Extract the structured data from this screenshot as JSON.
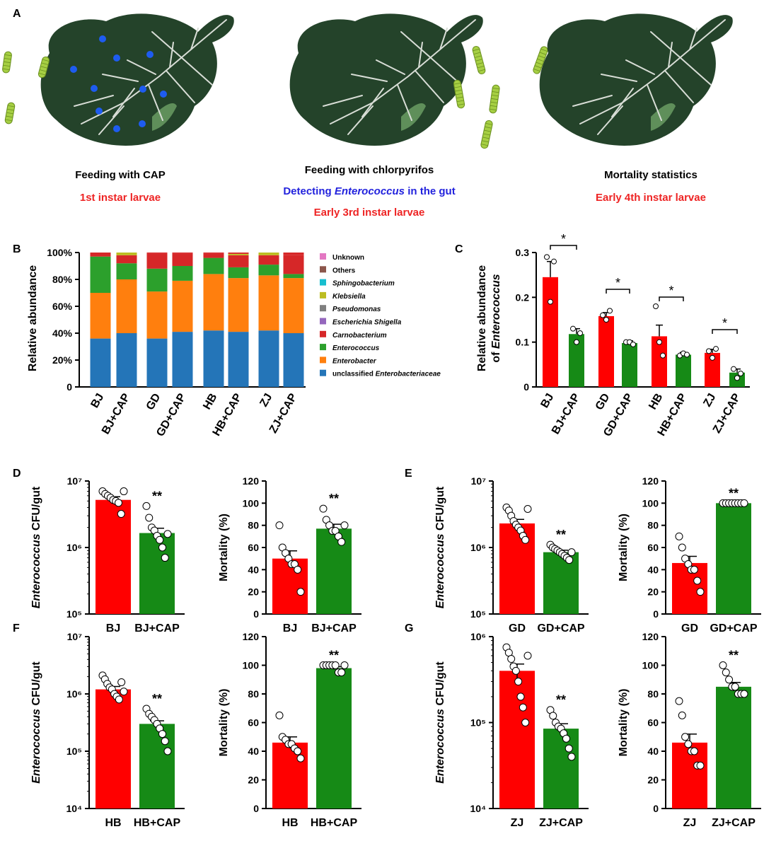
{
  "figure": {
    "panel_a": {
      "letter": "A",
      "steps": [
        {
          "title": "Feeding with CAP",
          "lines": [
            {
              "text": "1st instar larvae",
              "color": "#ee2424"
            }
          ]
        },
        {
          "title": "Feeding with chlorpyrifos",
          "lines": [
            {
              "parts": [
                {
                  "text": "Detecting ",
                  "italic": false
                },
                {
                  "text": "Enterococcus",
                  "italic": true
                },
                {
                  "text": " in the gut",
                  "italic": false
                }
              ],
              "color": "#2222dd"
            },
            {
              "text": "Early 3rd instar larvae",
              "color": "#ee2424"
            }
          ]
        },
        {
          "title": "Mortality statistics",
          "lines": [
            {
              "text": "Early 4th instar larvae",
              "color": "#ee2424"
            }
          ]
        }
      ],
      "dot_colors": [
        "#1e5cf0",
        "#ee1c25",
        "#ee1c25"
      ]
    }
  },
  "colors": {
    "red": "#ff0000",
    "green": "#168a16"
  },
  "chart_data": [
    {
      "panel": "B",
      "type": "bar",
      "stacked": true,
      "ylabel": "Relative abundance",
      "yticks": [
        "0",
        "20%",
        "40%",
        "60%",
        "80%",
        "100%"
      ],
      "ylim": [
        0,
        100
      ],
      "categories": [
        "BJ",
        "BJ+CAP",
        "GD",
        "GD+CAP",
        "HB",
        "HB+CAP",
        "ZJ",
        "ZJ+CAP"
      ],
      "series": [
        {
          "name": "unclassified Enterobacteriaceae",
          "label_parts": [
            {
              "text": "unclassified ",
              "italic": false
            },
            {
              "text": "Enterobacteriaceae",
              "italic": true
            }
          ],
          "color": "#2475b8",
          "values": [
            36,
            40,
            36,
            41,
            42,
            41,
            42,
            40
          ]
        },
        {
          "name": "Enterobacter",
          "italic": true,
          "color": "#ff7f0e",
          "values": [
            34,
            40,
            35,
            38,
            42,
            40,
            41,
            41
          ]
        },
        {
          "name": "Enterococcus",
          "italic": true,
          "color": "#2ca02c",
          "values": [
            27,
            12,
            17,
            11,
            12,
            8,
            8,
            3
          ]
        },
        {
          "name": "Carnobacterium",
          "italic": true,
          "color": "#d62728",
          "values": [
            3,
            6,
            11,
            9,
            3,
            9,
            7,
            14
          ]
        },
        {
          "name": "Escherichia Shigella",
          "italic": true,
          "color": "#9467bd",
          "values": [
            0,
            0,
            0,
            0,
            0,
            0,
            0,
            0
          ]
        },
        {
          "name": "Pseudomonas",
          "italic": true,
          "color": "#7f7f7f",
          "values": [
            0,
            0,
            0,
            0,
            0,
            0,
            0,
            0
          ]
        },
        {
          "name": "Klebsiella",
          "italic": true,
          "color": "#bcbd22",
          "values": [
            0,
            2,
            0,
            0,
            0,
            1,
            2,
            0
          ]
        },
        {
          "name": "Sphingobacterium",
          "italic": true,
          "color": "#17becf",
          "values": [
            0,
            0,
            0,
            0,
            0,
            0,
            0,
            0
          ]
        },
        {
          "name": "Others",
          "italic": false,
          "color": "#8c564b",
          "values": [
            0,
            0,
            0,
            0,
            0,
            0,
            0,
            0
          ]
        },
        {
          "name": "Unknown",
          "italic": false,
          "color": "#e377c2",
          "values": [
            0,
            0,
            0,
            0,
            0,
            0,
            0,
            0
          ]
        }
      ]
    },
    {
      "panel": "C",
      "type": "bar",
      "ylabel_lines": [
        [
          {
            "text": "Relative abundance",
            "italic": false
          }
        ],
        [
          {
            "text": "of ",
            "italic": false
          },
          {
            "text": "Enterococcus",
            "italic": true
          }
        ]
      ],
      "categories": [
        "BJ",
        "BJ+CAP",
        "GD",
        "GD+CAP",
        "HB",
        "HB+CAP",
        "ZJ",
        "ZJ+CAP"
      ],
      "values": [
        0.245,
        0.118,
        0.158,
        0.098,
        0.113,
        0.072,
        0.076,
        0.032
      ],
      "errors": [
        0.035,
        0.012,
        0.008,
        0.005,
        0.025,
        0.005,
        0.008,
        0.008
      ],
      "points": [
        [
          0.29,
          0.19,
          0.28
        ],
        [
          0.13,
          0.1,
          0.12
        ],
        [
          0.16,
          0.15,
          0.17
        ],
        [
          0.1,
          0.1,
          0.095
        ],
        [
          0.18,
          0.1,
          0.07
        ],
        [
          0.07,
          0.075,
          0.072
        ],
        [
          0.08,
          0.065,
          0.085
        ],
        [
          0.04,
          0.02,
          0.03
        ]
      ],
      "ylim": [
        0,
        0.3
      ],
      "yticks": [
        "0",
        "0.1",
        "0.2",
        "0.3"
      ],
      "significance": [
        {
          "pair": [
            0,
            1
          ],
          "label": "*"
        },
        {
          "pair": [
            2,
            3
          ],
          "label": "*"
        },
        {
          "pair": [
            4,
            5
          ],
          "label": "*"
        },
        {
          "pair": [
            6,
            7
          ],
          "label": "*"
        }
      ]
    },
    {
      "panel": "D",
      "type": "bar",
      "scale": "log",
      "ylabel_parts": [
        {
          "text": "Enterococcus",
          "italic": true
        },
        {
          "text": " CFU/gut",
          "italic": false
        }
      ],
      "yrange_exp": [
        5,
        7
      ],
      "yticks": [
        "10⁵",
        "10⁶",
        "10⁷"
      ],
      "categories": [
        "BJ",
        "BJ+CAP"
      ],
      "values": [
        5200000,
        1650000
      ],
      "errors": [
        600000,
        300000
      ],
      "points": [
        [
          7000000,
          6400000,
          6000000,
          5600000,
          5200000,
          5000000,
          4700000,
          3200000,
          7000000
        ],
        [
          4200000,
          2800000,
          2000000,
          1800000,
          1500000,
          1300000,
          1000000,
          700000,
          1600000
        ]
      ],
      "significance": "**"
    },
    {
      "panel": "D",
      "type": "bar",
      "ylabel": "Mortality (%)",
      "ylim": [
        0,
        120
      ],
      "yticks": [
        "0",
        "20",
        "40",
        "60",
        "80",
        "100",
        "120"
      ],
      "categories": [
        "BJ",
        "BJ+CAP"
      ],
      "values": [
        50,
        77
      ],
      "errors": [
        7,
        4
      ],
      "points": [
        [
          80,
          60,
          55,
          50,
          45,
          45,
          40,
          20
        ],
        [
          95,
          85,
          80,
          75,
          75,
          70,
          65,
          80
        ]
      ],
      "significance": "**"
    },
    {
      "panel": "E",
      "type": "bar",
      "scale": "log",
      "ylabel_parts": [
        {
          "text": "Enterococcus",
          "italic": true
        },
        {
          "text": " CFU/gut",
          "italic": false
        }
      ],
      "yrange_exp": [
        5,
        7
      ],
      "yticks": [
        "10⁵",
        "10⁶",
        "10⁷"
      ],
      "categories": [
        "GD",
        "GD+CAP"
      ],
      "values": [
        2300000,
        850000
      ],
      "errors": [
        350000,
        60000
      ],
      "points": [
        [
          4000000,
          3600000,
          3000000,
          2500000,
          2200000,
          2000000,
          1800000,
          1500000,
          1300000,
          3800000
        ],
        [
          1100000,
          1000000,
          950000,
          900000,
          850000,
          800000,
          750000,
          700000,
          650000,
          850000
        ]
      ],
      "significance": "**"
    },
    {
      "panel": "E",
      "type": "bar",
      "ylabel": "Mortality (%)",
      "ylim": [
        0,
        120
      ],
      "yticks": [
        "0",
        "20",
        "40",
        "60",
        "80",
        "100",
        "120"
      ],
      "categories": [
        "GD",
        "GD+CAP"
      ],
      "values": [
        46,
        100
      ],
      "errors": [
        6,
        0
      ],
      "points": [
        [
          70,
          60,
          50,
          45,
          40,
          40,
          30,
          20
        ],
        [
          100,
          100,
          100,
          100,
          100,
          100,
          100,
          100
        ]
      ],
      "significance": "**"
    },
    {
      "panel": "F",
      "type": "bar",
      "scale": "log",
      "ylabel_parts": [
        {
          "text": "Enterococcus",
          "italic": true
        },
        {
          "text": " CFU/gut",
          "italic": false
        }
      ],
      "yrange_exp": [
        4,
        7
      ],
      "yticks": [
        "10⁴",
        "10⁵",
        "10⁶",
        "10⁷"
      ],
      "categories": [
        "HB",
        "HB+CAP"
      ],
      "values": [
        1200000,
        300000
      ],
      "errors": [
        150000,
        40000
      ],
      "points": [
        [
          2100000,
          1800000,
          1500000,
          1300000,
          1200000,
          1000000,
          900000,
          800000,
          1600000,
          1100000
        ],
        [
          550000,
          450000,
          400000,
          350000,
          300000,
          250000,
          200000,
          150000,
          100000
        ]
      ],
      "significance": "**"
    },
    {
      "panel": "F",
      "type": "bar",
      "ylabel": "Mortality (%)",
      "ylim": [
        0,
        120
      ],
      "yticks": [
        "0",
        "20",
        "40",
        "60",
        "80",
        "100",
        "120"
      ],
      "categories": [
        "HB",
        "HB+CAP"
      ],
      "values": [
        46,
        98
      ],
      "errors": [
        4,
        1
      ],
      "points": [
        [
          65,
          50,
          48,
          45,
          45,
          42,
          40,
          35
        ],
        [
          100,
          100,
          100,
          100,
          100,
          95,
          95,
          100
        ]
      ],
      "significance": "**"
    },
    {
      "panel": "G",
      "type": "bar",
      "scale": "log",
      "ylabel_parts": [
        {
          "text": "Enterococcus",
          "italic": true
        },
        {
          "text": " CFU/gut",
          "italic": false
        }
      ],
      "yrange_exp": [
        4,
        6
      ],
      "yticks": [
        "10⁴",
        "10⁵",
        "10⁶"
      ],
      "categories": [
        "ZJ",
        "ZJ+CAP"
      ],
      "values": [
        400000,
        85000
      ],
      "errors": [
        80000,
        12000
      ],
      "points": [
        [
          750000,
          650000,
          550000,
          450000,
          400000,
          300000,
          200000,
          150000,
          100000,
          600000
        ],
        [
          140000,
          120000,
          100000,
          90000,
          85000,
          75000,
          65000,
          50000,
          40000
        ]
      ],
      "significance": "**"
    },
    {
      "panel": "G",
      "type": "bar",
      "ylabel": "Mortality (%)",
      "ylim": [
        0,
        120
      ],
      "yticks": [
        "0",
        "20",
        "40",
        "60",
        "80",
        "100",
        "120"
      ],
      "categories": [
        "ZJ",
        "ZJ+CAP"
      ],
      "values": [
        46,
        85
      ],
      "errors": [
        6,
        3
      ],
      "points": [
        [
          75,
          65,
          50,
          45,
          40,
          40,
          30,
          30
        ],
        [
          100,
          95,
          90,
          85,
          85,
          80,
          80,
          80
        ]
      ],
      "significance": "**"
    }
  ]
}
